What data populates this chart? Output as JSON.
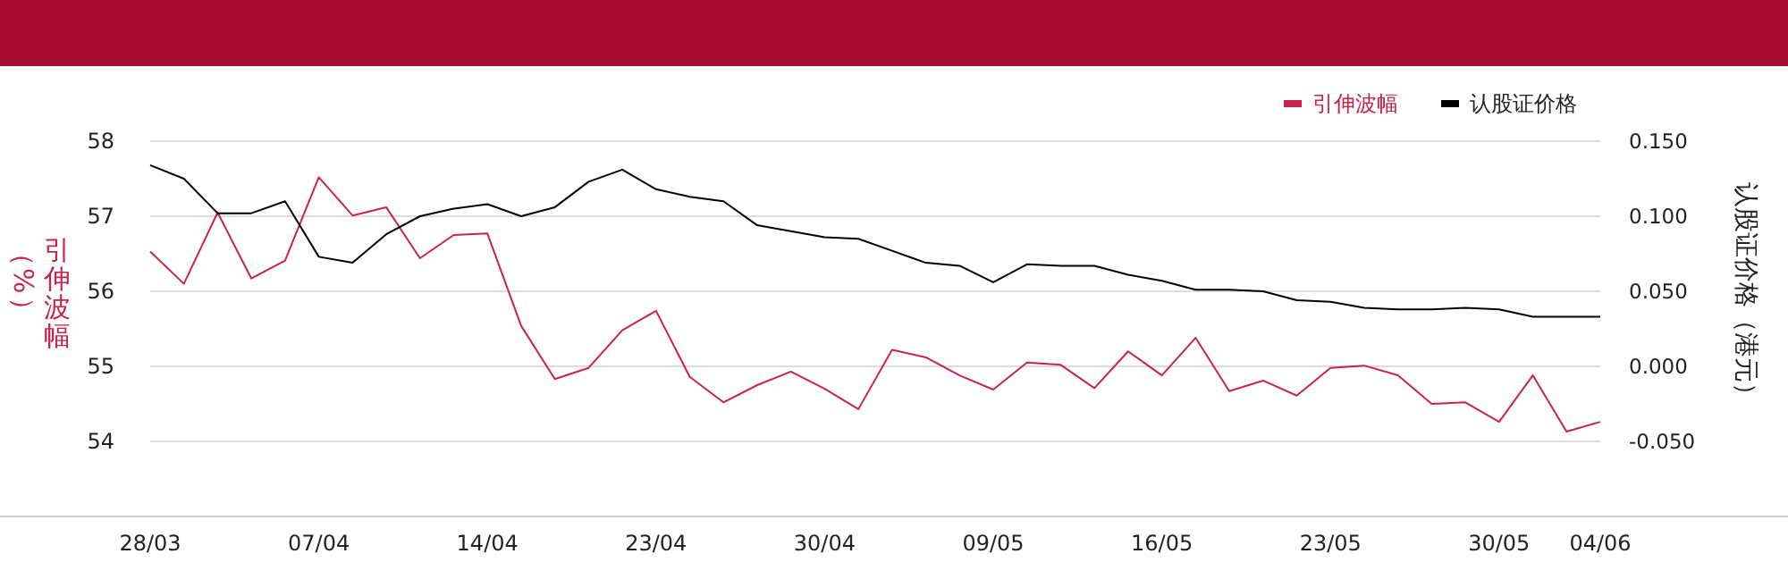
{
  "chart_data": {
    "type": "line",
    "categories": [
      "28/03",
      null,
      null,
      null,
      null,
      "07/04",
      null,
      null,
      null,
      null,
      "14/04",
      null,
      null,
      null,
      null,
      "23/04",
      null,
      null,
      null,
      null,
      "30/04",
      null,
      null,
      null,
      null,
      "09/05",
      null,
      null,
      null,
      null,
      "16/05",
      null,
      null,
      null,
      null,
      "23/05",
      null,
      null,
      null,
      null,
      "30/05",
      null,
      null,
      "04/06"
    ],
    "series": [
      {
        "name": "引伸波幅",
        "color": "#c8234a",
        "values": [
          56.53,
          56.1,
          57.05,
          56.17,
          56.41,
          57.52,
          57.01,
          57.12,
          56.44,
          56.75,
          56.77,
          55.54,
          54.83,
          54.98,
          55.48,
          55.74,
          54.86,
          54.52,
          54.75,
          54.93,
          54.7,
          54.43,
          55.22,
          55.12,
          54.88,
          54.69,
          55.05,
          55.02,
          54.71,
          55.2,
          54.88,
          55.38,
          54.67,
          54.81,
          54.61,
          54.98,
          55.01,
          54.88,
          54.5,
          54.52,
          54.26,
          54.88,
          54.13,
          54.26
        ]
      },
      {
        "name": "认股证价格",
        "color": "#000000",
        "axis": "y2",
        "values": [
          0.134,
          0.125,
          0.102,
          0.102,
          0.11,
          0.073,
          0.069,
          0.088,
          0.1,
          0.105,
          0.108,
          0.1,
          0.106,
          0.123,
          0.131,
          0.118,
          0.113,
          0.11,
          0.094,
          0.09,
          0.086,
          0.085,
          0.077,
          0.069,
          0.067,
          0.056,
          0.068,
          0.067,
          0.067,
          0.061,
          0.057,
          0.051,
          0.051,
          0.05,
          0.044,
          0.043,
          0.039,
          0.038,
          0.038,
          0.039,
          0.038,
          0.033,
          0.033,
          0.033
        ]
      }
    ],
    "ylabel": "引伸波幅（%）",
    "y2label": "认股证价格（港元）",
    "ylim": [
      53,
      58
    ],
    "yticks": [
      54,
      55,
      56,
      57,
      58
    ],
    "y2lim": [
      -0.1,
      0.15
    ],
    "y2ticks": [
      {
        "value": -0.05,
        "label": "-0.050"
      },
      {
        "value": 0,
        "label": "0.000"
      },
      {
        "value": 0.05,
        "label": "0.050"
      },
      {
        "value": 0.1,
        "label": "0.100"
      },
      {
        "value": 0.15,
        "label": "0.150"
      }
    ],
    "grid": "y",
    "legend": "top right"
  }
}
